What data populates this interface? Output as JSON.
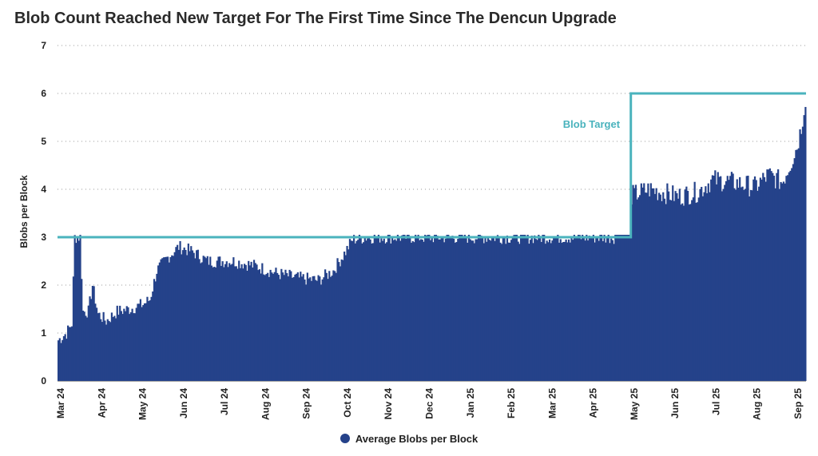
{
  "chart_data": {
    "type": "bar",
    "title": "Blob Count Reached New Target For The First Time Since The Dencun Upgrade",
    "xlabel": "",
    "ylabel": "Blobs per Block",
    "ylim": [
      0,
      7
    ],
    "yticks": [
      0,
      1,
      2,
      3,
      4,
      5,
      6,
      7
    ],
    "grid": true,
    "legend_position": "bottom",
    "x_tick_labels": [
      "Mar 24",
      "Apr 24",
      "May 24",
      "Jun 24",
      "Jul 24",
      "Aug 24",
      "Sep 24",
      "Oct 24",
      "Nov 24",
      "Dec 24",
      "Jan 25",
      "Feb 25",
      "Mar 25",
      "Apr 25",
      "May 25",
      "Jun 25",
      "Jul 25",
      "Aug 25",
      "Sep 25"
    ],
    "series": [
      {
        "name": "Average Blobs per Block",
        "type": "bar",
        "color": "#25428a",
        "points": [
          {
            "date": "2024-03-14",
            "value": 0.85
          },
          {
            "date": "2024-03-20",
            "value": 1.0
          },
          {
            "date": "2024-03-24",
            "value": 1.2
          },
          {
            "date": "2024-03-26",
            "value": 3.0
          },
          {
            "date": "2024-03-30",
            "value": 3.0
          },
          {
            "date": "2024-04-01",
            "value": 1.45
          },
          {
            "date": "2024-04-05",
            "value": 1.45
          },
          {
            "date": "2024-04-08",
            "value": 2.0
          },
          {
            "date": "2024-04-12",
            "value": 1.4
          },
          {
            "date": "2024-04-18",
            "value": 1.25
          },
          {
            "date": "2024-04-26",
            "value": 1.45
          },
          {
            "date": "2024-05-05",
            "value": 1.5
          },
          {
            "date": "2024-05-15",
            "value": 1.6
          },
          {
            "date": "2024-05-20",
            "value": 1.7
          },
          {
            "date": "2024-05-25",
            "value": 2.3
          },
          {
            "date": "2024-06-01",
            "value": 2.55
          },
          {
            "date": "2024-06-10",
            "value": 2.8
          },
          {
            "date": "2024-06-20",
            "value": 2.7
          },
          {
            "date": "2024-07-01",
            "value": 2.5
          },
          {
            "date": "2024-07-20",
            "value": 2.5
          },
          {
            "date": "2024-08-05",
            "value": 2.4
          },
          {
            "date": "2024-08-20",
            "value": 2.25
          },
          {
            "date": "2024-09-05",
            "value": 2.15
          },
          {
            "date": "2024-09-20",
            "value": 2.1
          },
          {
            "date": "2024-10-01",
            "value": 2.3
          },
          {
            "date": "2024-10-10",
            "value": 2.7
          },
          {
            "date": "2024-10-15",
            "value": 2.95
          },
          {
            "date": "2024-10-25",
            "value": 3.0
          },
          {
            "date": "2024-12-15",
            "value": 3.0
          },
          {
            "date": "2025-02-15",
            "value": 3.0
          },
          {
            "date": "2025-04-24",
            "value": 3.0
          },
          {
            "date": "2025-04-26",
            "value": 3.6
          },
          {
            "date": "2025-05-05",
            "value": 3.85
          },
          {
            "date": "2025-05-20",
            "value": 4.0
          },
          {
            "date": "2025-06-10",
            "value": 3.85
          },
          {
            "date": "2025-06-25",
            "value": 3.95
          },
          {
            "date": "2025-07-05",
            "value": 4.2
          },
          {
            "date": "2025-07-20",
            "value": 4.15
          },
          {
            "date": "2025-08-05",
            "value": 4.05
          },
          {
            "date": "2025-08-15",
            "value": 4.3
          },
          {
            "date": "2025-08-25",
            "value": 4.15
          },
          {
            "date": "2025-09-01",
            "value": 4.6
          },
          {
            "date": "2025-09-05",
            "value": 4.9
          },
          {
            "date": "2025-09-08",
            "value": 5.3
          },
          {
            "date": "2025-09-11",
            "value": 5.9
          }
        ]
      },
      {
        "name": "Blob Target",
        "type": "step-line",
        "color": "#4ab3bd",
        "points": [
          {
            "date": "2024-03-14",
            "value": 3
          },
          {
            "date": "2025-05-07",
            "value": 3
          },
          {
            "date": "2025-05-07",
            "value": 6
          },
          {
            "date": "2025-09-12",
            "value": 6
          }
        ]
      }
    ],
    "annotations": [
      {
        "text": "Blob Target",
        "series": "Blob Target",
        "date": "2025-04-15",
        "value": 5.35
      }
    ]
  }
}
